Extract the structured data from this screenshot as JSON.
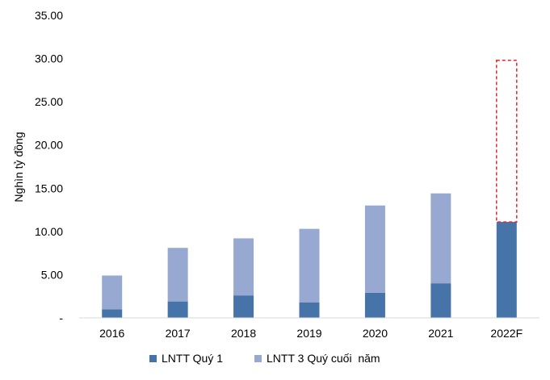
{
  "chart_data": {
    "type": "bar",
    "stacked": true,
    "categories": [
      "2016",
      "2017",
      "2018",
      "2019",
      "2020",
      "2021",
      "2022F"
    ],
    "series": [
      {
        "name": "LNTT Quý 1",
        "color": "#4673a8",
        "values": [
          1.0,
          1.9,
          2.6,
          1.8,
          2.9,
          4.0,
          11.1
        ]
      },
      {
        "name": "LNTT 3 Quý cuối  năm",
        "color": "#97a9d1",
        "values": [
          3.9,
          6.2,
          6.6,
          8.5,
          10.1,
          10.4,
          null
        ]
      }
    ],
    "projection": {
      "category": "2022F",
      "from": 11.1,
      "to": 29.8,
      "style": "dashed-outline",
      "color": "#e8262d"
    },
    "ylabel": "Nghìn tỷ đồng",
    "ylim": [
      0,
      35
    ],
    "yticks": [
      "-",
      "5.00",
      "10.00",
      "15.00",
      "20.00",
      "25.00",
      "30.00",
      "35.00"
    ],
    "ytick_values": [
      0,
      5,
      10,
      15,
      20,
      25,
      30,
      35
    ],
    "grid": false,
    "legend_position": "bottom"
  }
}
